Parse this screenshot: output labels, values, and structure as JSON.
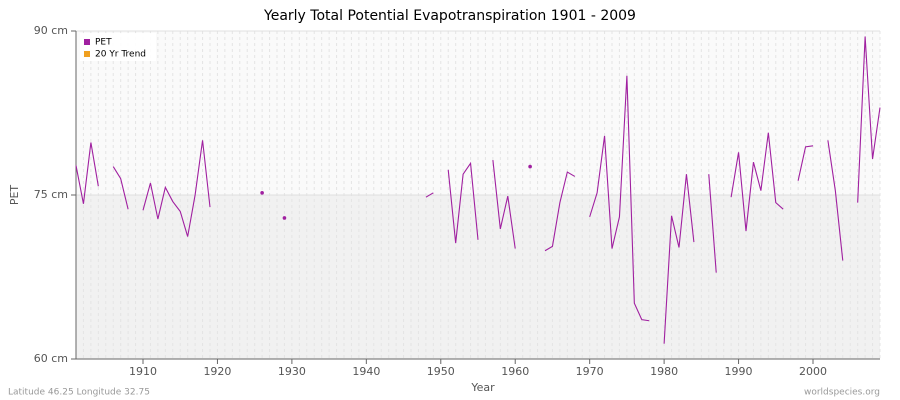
{
  "chart_data": {
    "type": "line",
    "title": "Yearly Total Potential Evapotranspiration 1901 - 2009",
    "x_label": "Year",
    "y_label": "PET",
    "footer_left": "Latitude 46.25 Longitude 32.75",
    "footer_right": "worldspecies.org",
    "x": [
      1901,
      1902,
      1903,
      1904,
      1905,
      1906,
      1907,
      1908,
      1909,
      1910,
      1911,
      1912,
      1913,
      1914,
      1915,
      1916,
      1917,
      1918,
      1919,
      1920,
      1921,
      1922,
      1923,
      1924,
      1925,
      1926,
      1927,
      1928,
      1929,
      1930,
      1931,
      1932,
      1933,
      1934,
      1935,
      1936,
      1937,
      1938,
      1939,
      1940,
      1941,
      1942,
      1943,
      1944,
      1945,
      1946,
      1947,
      1948,
      1949,
      1950,
      1951,
      1952,
      1953,
      1954,
      1955,
      1956,
      1957,
      1958,
      1959,
      1960,
      1961,
      1962,
      1963,
      1964,
      1965,
      1966,
      1967,
      1968,
      1969,
      1970,
      1971,
      1972,
      1973,
      1974,
      1975,
      1976,
      1977,
      1978,
      1979,
      1980,
      1981,
      1982,
      1983,
      1984,
      1985,
      1986,
      1987,
      1988,
      1989,
      1990,
      1991,
      1992,
      1993,
      1994,
      1995,
      1996,
      1997,
      1998,
      1999,
      2000,
      2001,
      2002,
      2003,
      2004,
      2005,
      2006,
      2007,
      2008,
      2009
    ],
    "series": [
      {
        "name": "PET",
        "color": "#a020a0",
        "values": [
          77.7,
          74.2,
          79.8,
          75.8,
          null,
          77.6,
          76.5,
          73.7,
          null,
          73.6,
          76.1,
          72.8,
          75.7,
          74.4,
          73.5,
          71.2,
          75.0,
          80.0,
          73.9,
          null,
          null,
          null,
          null,
          null,
          null,
          75.2,
          null,
          null,
          72.9,
          null,
          null,
          null,
          null,
          null,
          null,
          null,
          null,
          null,
          null,
          null,
          null,
          null,
          null,
          null,
          null,
          null,
          null,
          74.8,
          75.2,
          null,
          77.3,
          70.6,
          76.9,
          77.9,
          70.9,
          null,
          78.2,
          71.9,
          74.9,
          70.1,
          null,
          77.6,
          null,
          69.9,
          70.3,
          74.3,
          77.1,
          76.7,
          null,
          73.0,
          75.2,
          80.4,
          70.1,
          73.0,
          85.9,
          65.1,
          63.6,
          63.5,
          null,
          61.4,
          73.1,
          70.2,
          76.9,
          70.7,
          null,
          76.9,
          67.9,
          null,
          74.8,
          78.9,
          71.7,
          78.0,
          75.4,
          80.7,
          74.3,
          73.7,
          null,
          76.3,
          79.4,
          79.5,
          null,
          80.0,
          75.4,
          69.0,
          null,
          74.3,
          89.5,
          78.3,
          83.0
        ]
      },
      {
        "name": "20 Yr Trend",
        "color": "#f0a020"
      }
    ],
    "xlim": [
      1901,
      2009
    ],
    "xticks": [
      1910,
      1920,
      1930,
      1940,
      1950,
      1960,
      1970,
      1980,
      1990,
      2000
    ],
    "ylim": [
      60,
      90
    ],
    "yticks": [
      {
        "value": 60,
        "label": "60 cm"
      },
      {
        "value": 75,
        "label": "75 cm"
      },
      {
        "value": 90,
        "label": "90 cm"
      }
    ],
    "grid": true,
    "legend": "top-left"
  }
}
